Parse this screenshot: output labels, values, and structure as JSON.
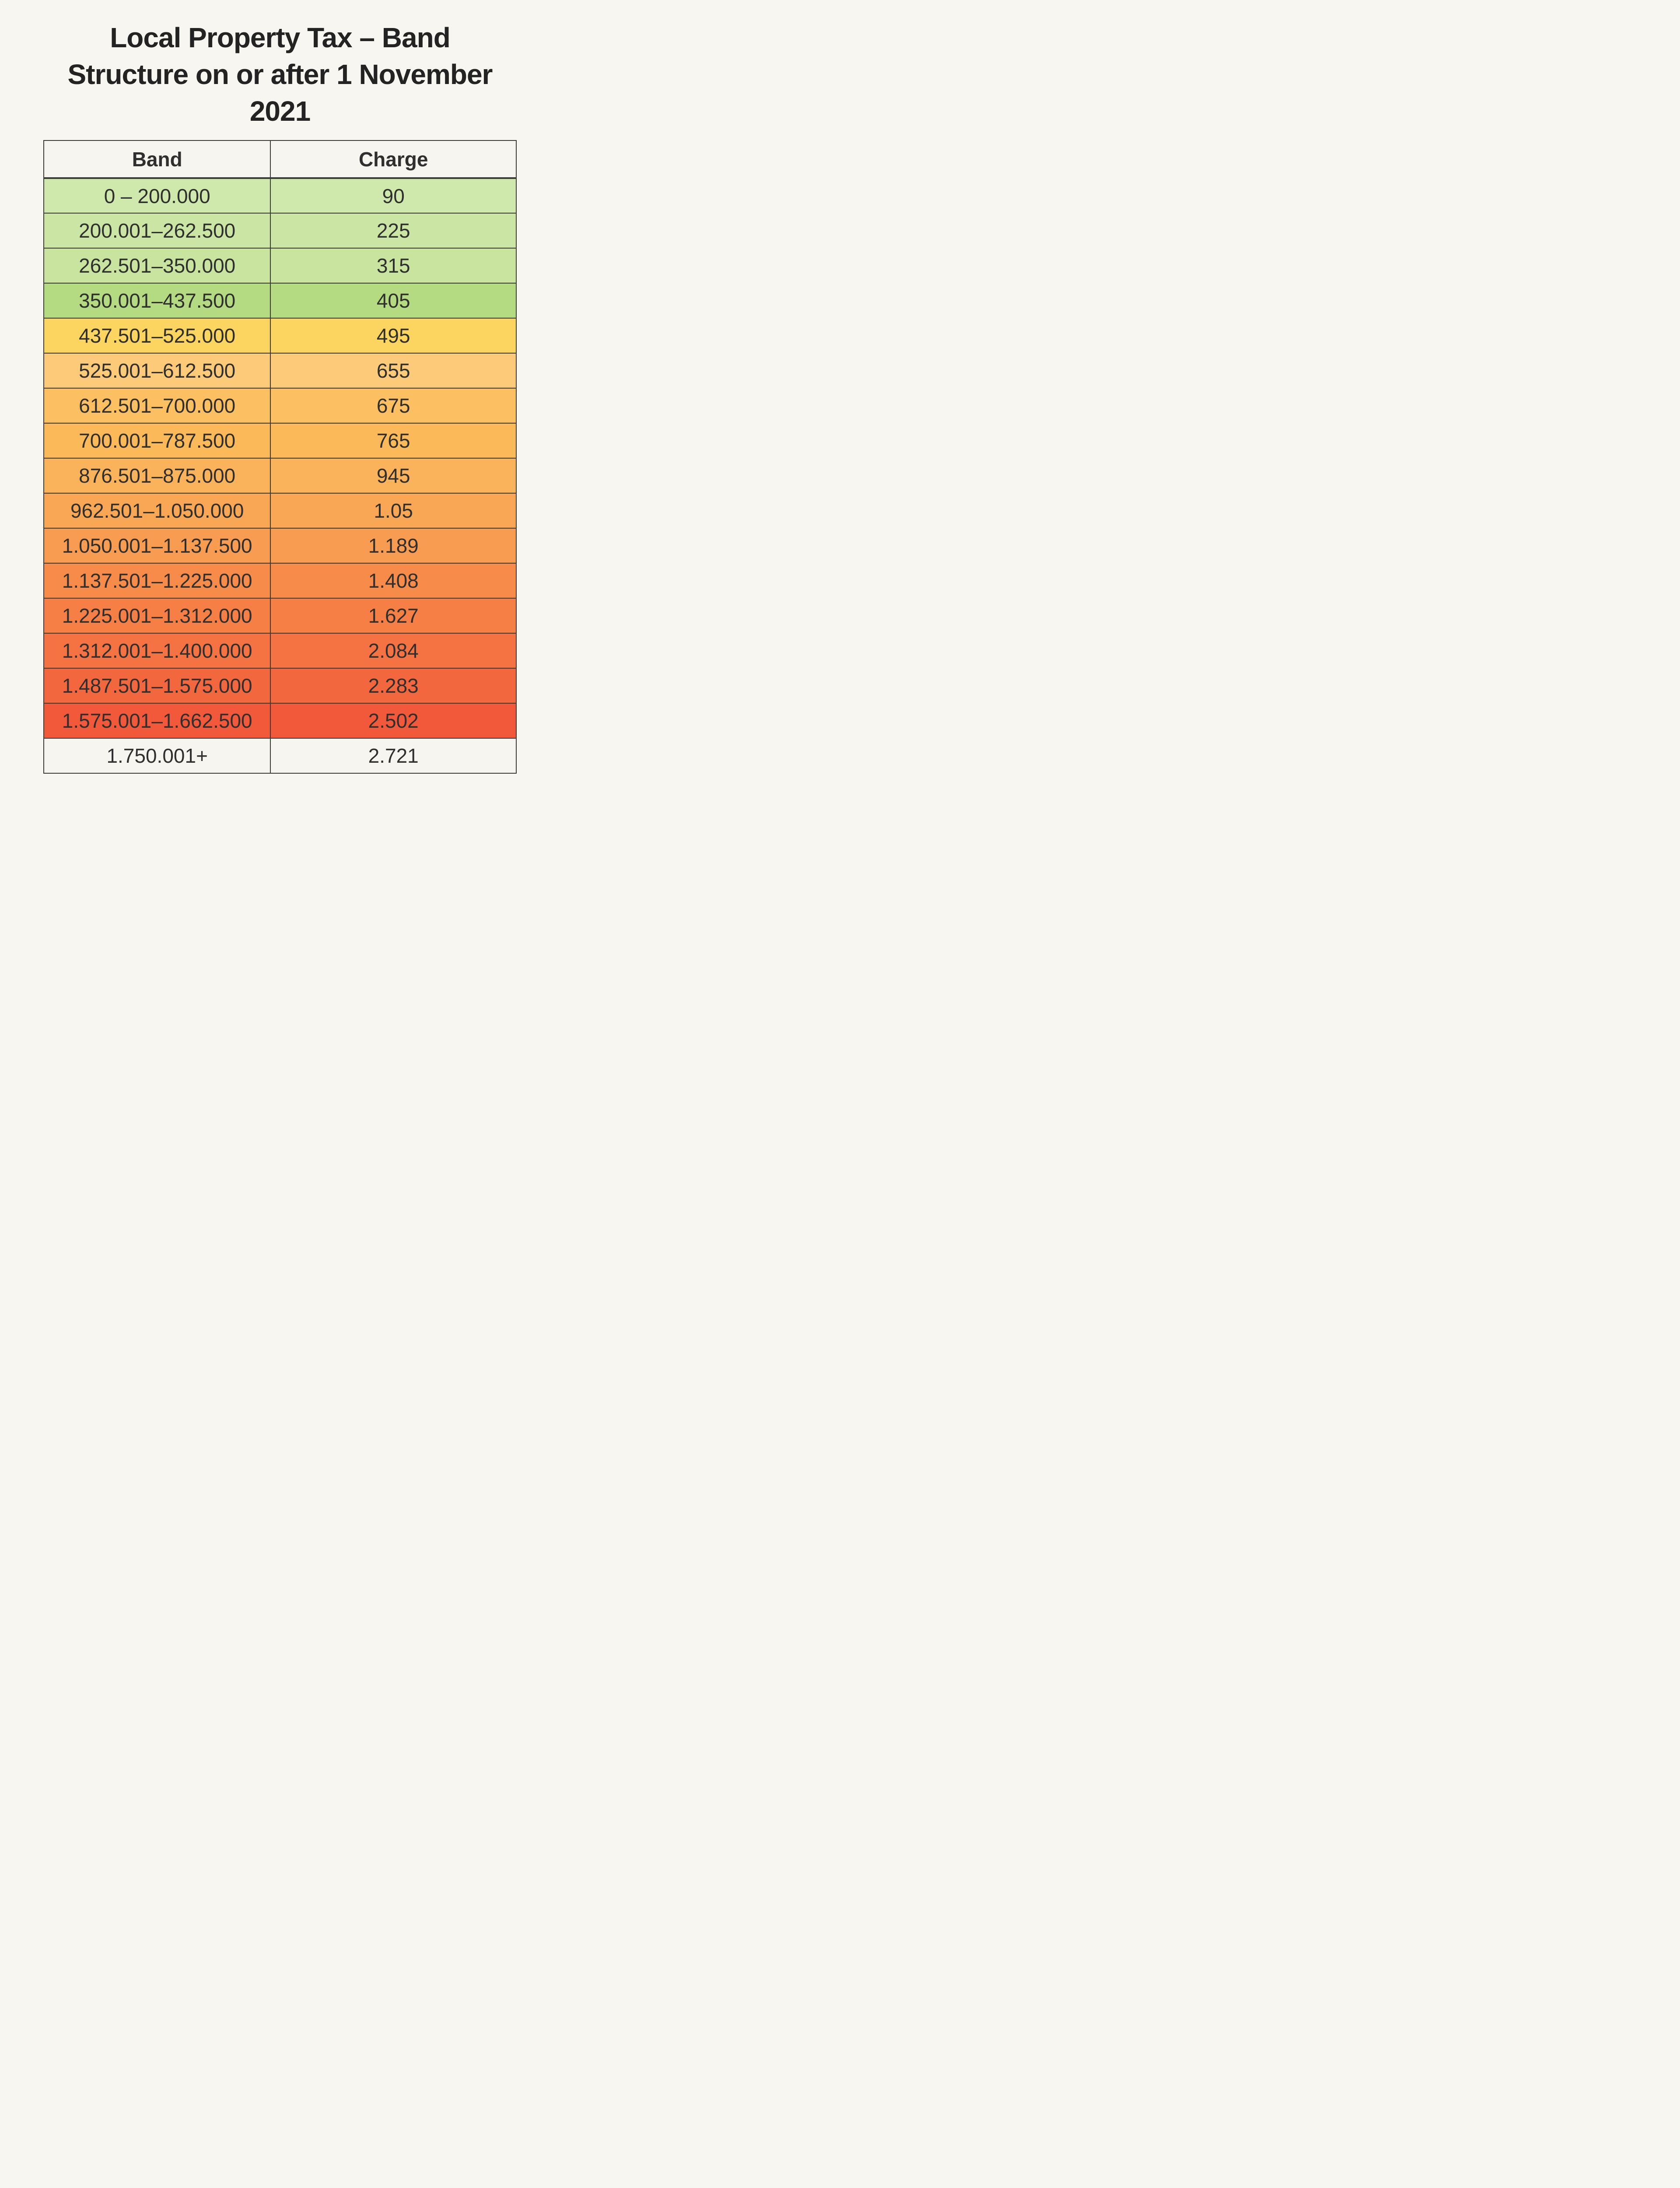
{
  "page": {
    "background": "#f8f6f1",
    "title_lines": [
      "Local Property Tax – Band",
      "Structure on or after 1 November",
      "2021"
    ]
  },
  "colors": {
    "border": "#3c3c38",
    "header_bg": "#f6f5f0",
    "text": "#2f2f2f"
  },
  "chart_data": {
    "type": "table",
    "title": "Local Property Tax – Band Structure on or after 1 November 2021",
    "columns": [
      "Band",
      "Charge"
    ],
    "rows": [
      {
        "band": "0 – 200.000",
        "charge": "90",
        "color": "#cfe8ab"
      },
      {
        "band": "200.001–262.500",
        "charge": "225",
        "color": "#cbe6a4"
      },
      {
        "band": "262.501–350.000",
        "charge": "315",
        "color": "#c8e49f"
      },
      {
        "band": "350.001–437.500",
        "charge": "405",
        "color": "#b4da82"
      },
      {
        "band": "437.501–525.000",
        "charge": "495",
        "color": "#fbd55f"
      },
      {
        "band": "525.001–612.500",
        "charge": "655",
        "color": "#fcca78"
      },
      {
        "band": "612.501–700.000",
        "charge": "675",
        "color": "#fcbf62"
      },
      {
        "band": "700.001–787.500",
        "charge": "765",
        "color": "#fbb95a"
      },
      {
        "band": "876.501–875.000",
        "charge": "945",
        "color": "#fab35b"
      },
      {
        "band": "962.501–1.050.000",
        "charge": "1.05",
        "color": "#f9a755"
      },
      {
        "band": "1.050.001–1.137.500",
        "charge": "1.189",
        "color": "#f89c51"
      },
      {
        "band": "1.137.501–1.225.000",
        "charge": "1.408",
        "color": "#f78b4a"
      },
      {
        "band": "1.225.001–1.312.000",
        "charge": "1.627",
        "color": "#f67f45"
      },
      {
        "band": "1.312.001–1.400.000",
        "charge": "2.084",
        "color": "#f57342"
      },
      {
        "band": "1.487.501–1.575.000",
        "charge": "2.283",
        "color": "#f3673f"
      },
      {
        "band": "1.575.001–1.662.500",
        "charge": "2.502",
        "color": "#f2593a"
      },
      {
        "band": "1.750.001+",
        "charge": "2.721",
        "color": "#f6f5f0"
      }
    ]
  }
}
